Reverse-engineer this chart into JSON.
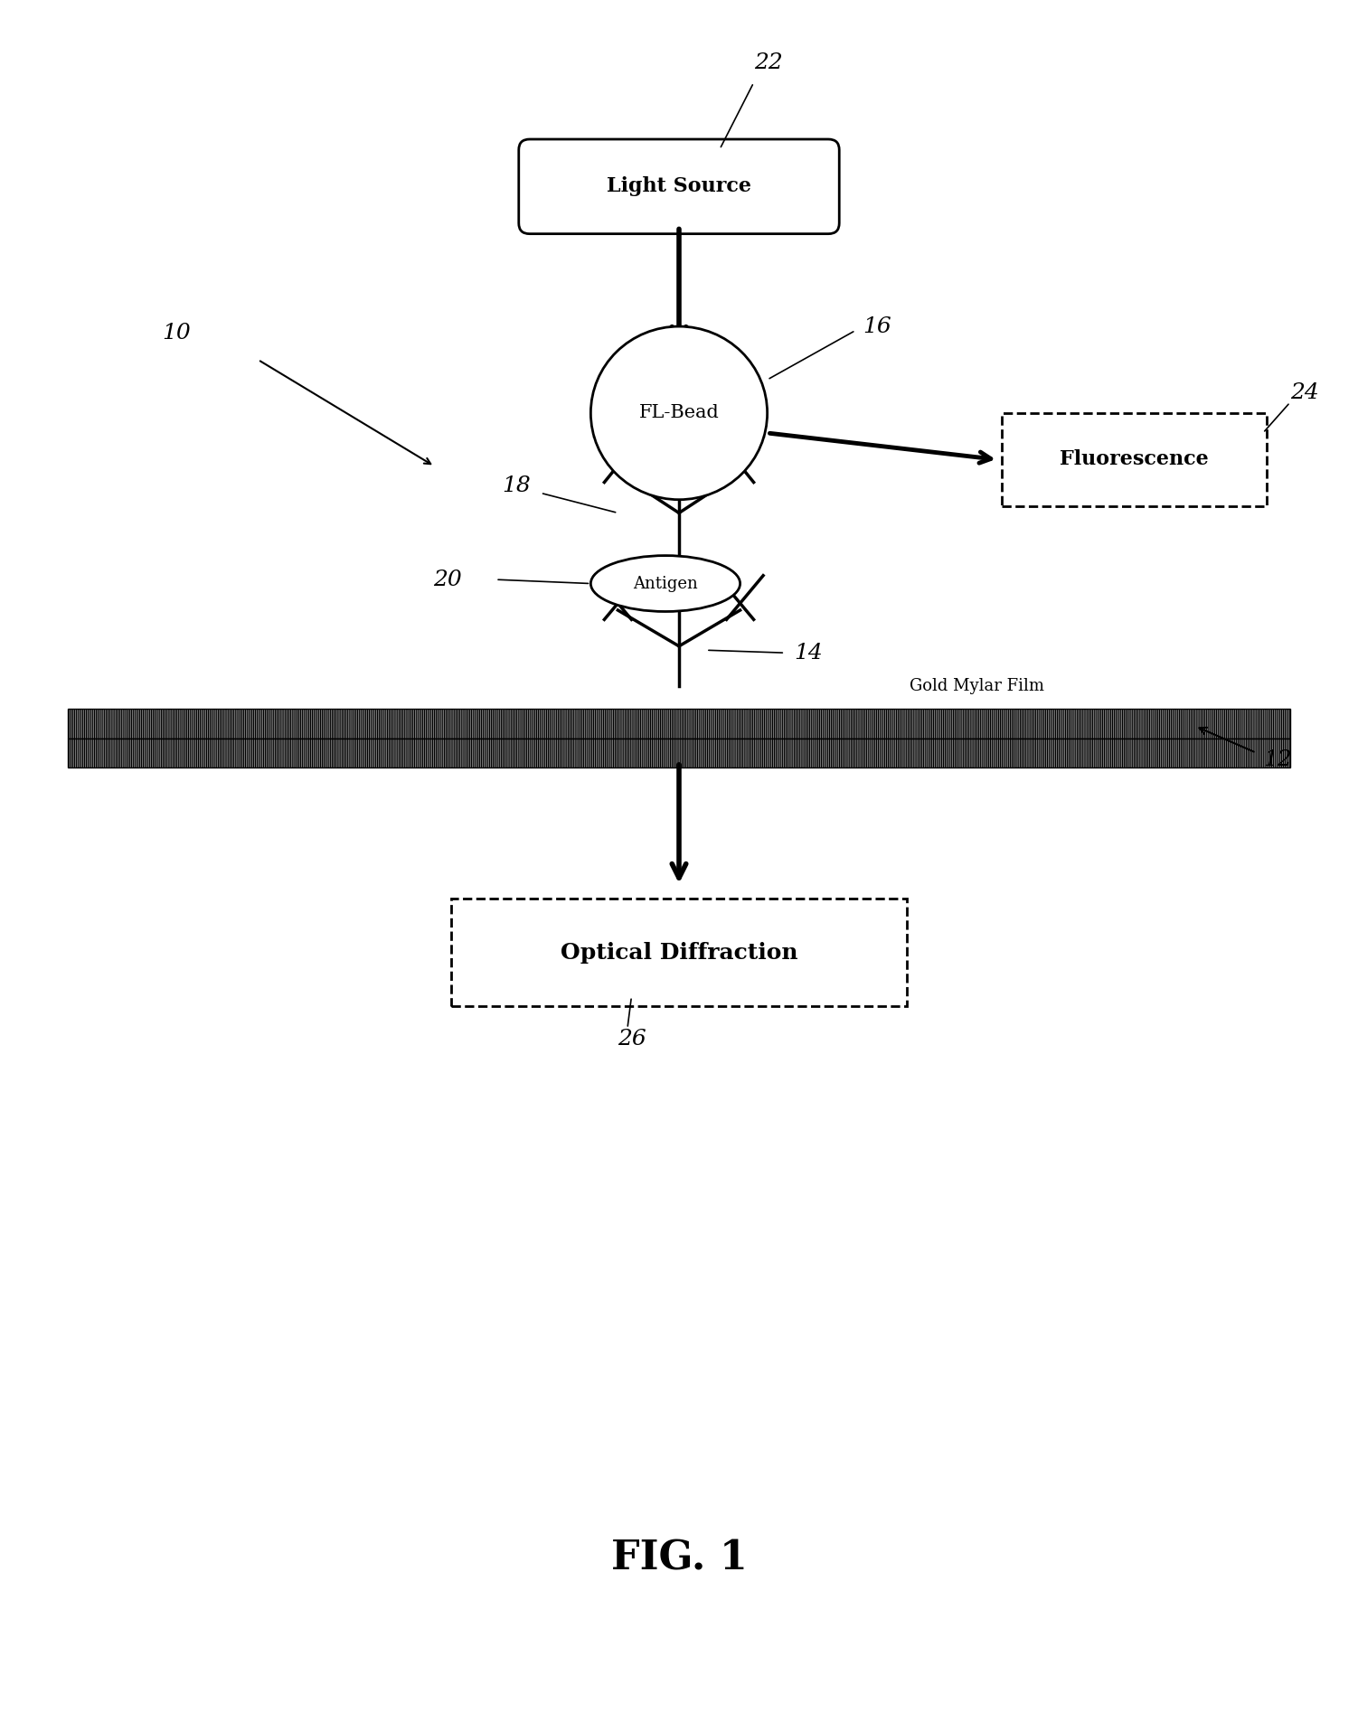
{
  "bg_color": "#ffffff",
  "fig_label": "FIG. 1",
  "labels": {
    "light_source": "Light Source",
    "fl_bead": "FL-Bead",
    "antigen": "Antigen",
    "fluorescence": "Fluorescence",
    "optical_diffraction": "Optical Diffraction",
    "gold_mylar": "Gold Mylar Film"
  },
  "ref_nums": {
    "n10": "10",
    "n12": "12",
    "n14": "14",
    "n16": "16",
    "n18": "18",
    "n20": "20",
    "n22": "22",
    "n24": "24",
    "n26": "26"
  }
}
